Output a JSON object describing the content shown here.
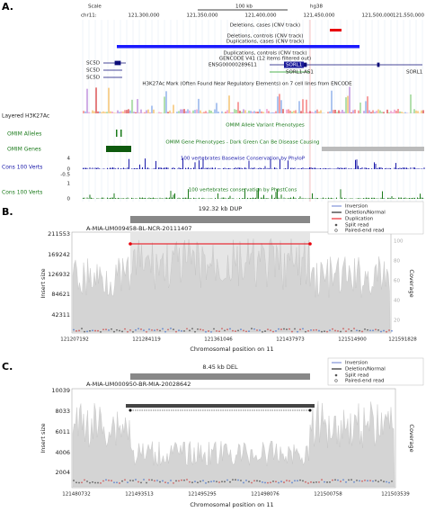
{
  "panel_a": {
    "label": "A.",
    "scale": "Scale",
    "scale_bar": "100 kb",
    "assembly": "hg38",
    "chrom": "chr11:",
    "positions": [
      "121,300,000",
      "121,350,000",
      "121,400,000",
      "121,450,000",
      "121,500,000",
      "121,550,000"
    ],
    "tracks": {
      "del_cases": "Deletions, cases (CNV track)",
      "del_controls": "Deletions, controls (CNV track)",
      "dup_cases": "Duplications, cases (CNV track)",
      "dup_controls": "Duplications, controls (CNV track)",
      "gencode": "GENCODE V41 (12 items filtered out)",
      "genes": [
        "SC5D",
        "SC5D",
        "SC5D",
        "ENSG00000289611",
        "SORL1",
        "SORL1-AS1",
        "SORL1"
      ],
      "h3k27ac_title": "H3K27Ac Mark (Often Found Near Regulatory Elements) on 7 cell lines from ENCODE",
      "h3k27ac_label": "Layered H3K27Ac",
      "omim_alleles_title": "OMIM Allele Variant Phenotypes",
      "omim_alleles_label": "OMIM Alleles",
      "omim_genes_title": "OMIM Gene Phenotypes - Dark Green Can Be Disease Causing",
      "omim_genes_label": "OMIM Genes",
      "phylop_title": "100 vertebrates Basewise Conservation by PhyloP",
      "phylop_label": "Cons 100 Verts",
      "phylop_ticks": [
        "4",
        "0",
        "-0.5"
      ],
      "phastcons_title": "100 vertebrates conservation by PhastCons",
      "phastcons_label": "Cons 100 Verts",
      "phastcons_ticks": [
        "1",
        "0"
      ]
    }
  },
  "panel_b": {
    "label": "B.",
    "event": "192.32 kb DUP",
    "sample": "A-MIA-UM009458-BL-NCR-20111407",
    "legend": [
      "Inversion",
      "Deletion/Normal",
      "Duplication",
      "Split read",
      "Paired-end read"
    ],
    "y_label": "Insert size",
    "y2_label": "Coverage",
    "x_label": "Chromosomal position on 11",
    "yticks": [
      "211553",
      "169242",
      "126932",
      "84621",
      "42311"
    ],
    "y2ticks": [
      "100",
      "80",
      "60",
      "40",
      "20"
    ],
    "xticks": [
      "121207192",
      "121284119",
      "121361046",
      "121437973",
      "121514900",
      "121591828"
    ]
  },
  "panel_c": {
    "label": "C.",
    "event": "8.45 kb DEL",
    "sample": "A-MIA-UM000950-BR-MIA-20028642",
    "legend": [
      "Inversion",
      "Deletion/Normal",
      "Split read",
      "Paired-end read"
    ],
    "y_label": "Insert size",
    "y2_label": "Coverage",
    "x_label": "Chromosomal position on 11",
    "yticks": [
      "10039",
      "8033",
      "6011",
      "4006",
      "2004"
    ],
    "xticks": [
      "121480732",
      "121493513",
      "121495295",
      "121498076",
      "121500758",
      "121503539"
    ]
  }
}
